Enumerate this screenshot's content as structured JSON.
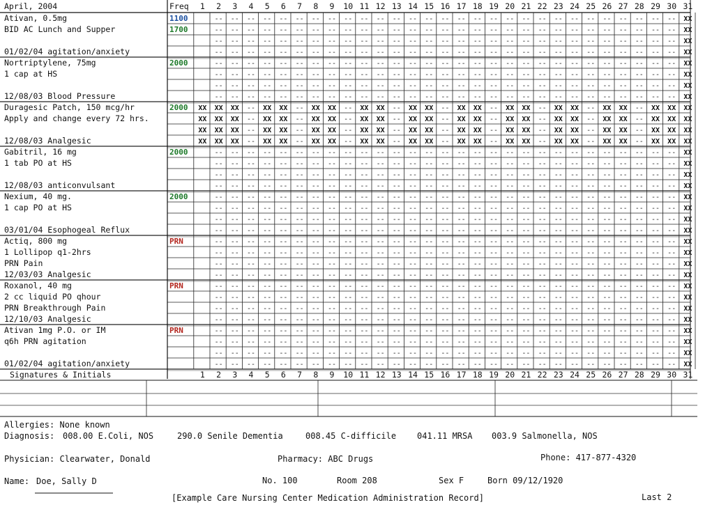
{
  "header": {
    "month": "April, 2004",
    "freq_label": "Freq",
    "days": [
      "1",
      "2",
      "3",
      "4",
      "5",
      "6",
      "7",
      "8",
      "9",
      "10",
      "11",
      "12",
      "13",
      "14",
      "15",
      "16",
      "17",
      "18",
      "19",
      "20",
      "21",
      "22",
      "23",
      "24",
      "25",
      "26",
      "27",
      "28",
      "29",
      "30",
      "31"
    ]
  },
  "colors": {
    "freq_blue": "#1a4fa0",
    "freq_green": "#1e7a2a",
    "freq_red": "#b3261e"
  },
  "medications": [
    {
      "lines": [
        "Ativan, 0.5mg",
        "BID AC Lunch and Supper",
        "",
        "01/02/04  agitation/anxiety"
      ],
      "freq": [
        {
          "text": "1100",
          "color": "blue"
        },
        {
          "text": "1700",
          "color": "green"
        }
      ],
      "pattern": "all"
    },
    {
      "lines": [
        "Nortriptylene, 75mg",
        "1 cap at HS",
        "",
        "12/08/03  Blood Pressure"
      ],
      "freq": [
        {
          "text": "2000",
          "color": "green"
        }
      ],
      "pattern": "all"
    },
    {
      "lines": [
        "Duragesic Patch, 150 mcg/hr",
        "Apply and change every 72 hrs.",
        "",
        "12/08/03  Analgesic"
      ],
      "freq": [
        {
          "text": "2000",
          "color": "green"
        }
      ],
      "pattern": "patch",
      "change_days": [
        1,
        4,
        7,
        10,
        13,
        16,
        19,
        22,
        25,
        28
      ]
    },
    {
      "lines": [
        "Gabitril, 16 mg",
        "1 tab PO at HS",
        "",
        "12/08/03  anticonvulsant"
      ],
      "freq": [
        {
          "text": "2000",
          "color": "green"
        }
      ],
      "pattern": "all"
    },
    {
      "lines": [
        "Nexium, 40 mg.",
        "1 cap PO at HS",
        "",
        "03/01/04  Esophogeal Reflux"
      ],
      "freq": [
        {
          "text": "2000",
          "color": "green"
        }
      ],
      "pattern": "all"
    },
    {
      "lines": [
        "Actiq, 800 mg",
        "1 Lollipop q1-2hrs",
        "PRN Pain",
        "12/03/03  Analgesic"
      ],
      "freq": [
        {
          "text": "PRN",
          "color": "red"
        }
      ],
      "pattern": "all"
    },
    {
      "lines": [
        "Roxanol, 40 mg",
        "2 cc liquid PO qhour",
        "PRN Breakthrough Pain",
        "12/10/03  Analgesic"
      ],
      "freq": [
        {
          "text": "PRN",
          "color": "red"
        }
      ],
      "pattern": "all"
    },
    {
      "lines": [
        "Ativan 1mg P.O. or IM",
        "q6h PRN agitation",
        "",
        "01/02/04  agitation/anxiety"
      ],
      "freq": [
        {
          "text": "PRN",
          "color": "red"
        }
      ],
      "pattern": "all"
    }
  ],
  "marks": {
    "blank": "--",
    "cancelled": "XX"
  },
  "signatures_label": "Signatures  &  Initials",
  "footer": {
    "allergies": "Allergies: None known",
    "diagnosis_label": "Diagnosis:",
    "diagnoses": [
      "008.00 E.Coli, NOS",
      "290.0 Senile Dementia",
      "008.45 C-difficile",
      "041.11 MRSA",
      "003.9 Salmonella, NOS"
    ],
    "physician": "Physician: Clearwater, Donald",
    "pharmacy": "Pharmacy: ABC Drugs",
    "phone": "Phone: 417-877-4320",
    "name_label": "Name:",
    "name": "Doe, Sally D",
    "no": "No. 100",
    "room": "Room  208",
    "sex": "Sex F",
    "born": "Born 09/12/1920",
    "title": "[Example Care Nursing Center  Medication Administration Record]",
    "page": "Last 2"
  }
}
